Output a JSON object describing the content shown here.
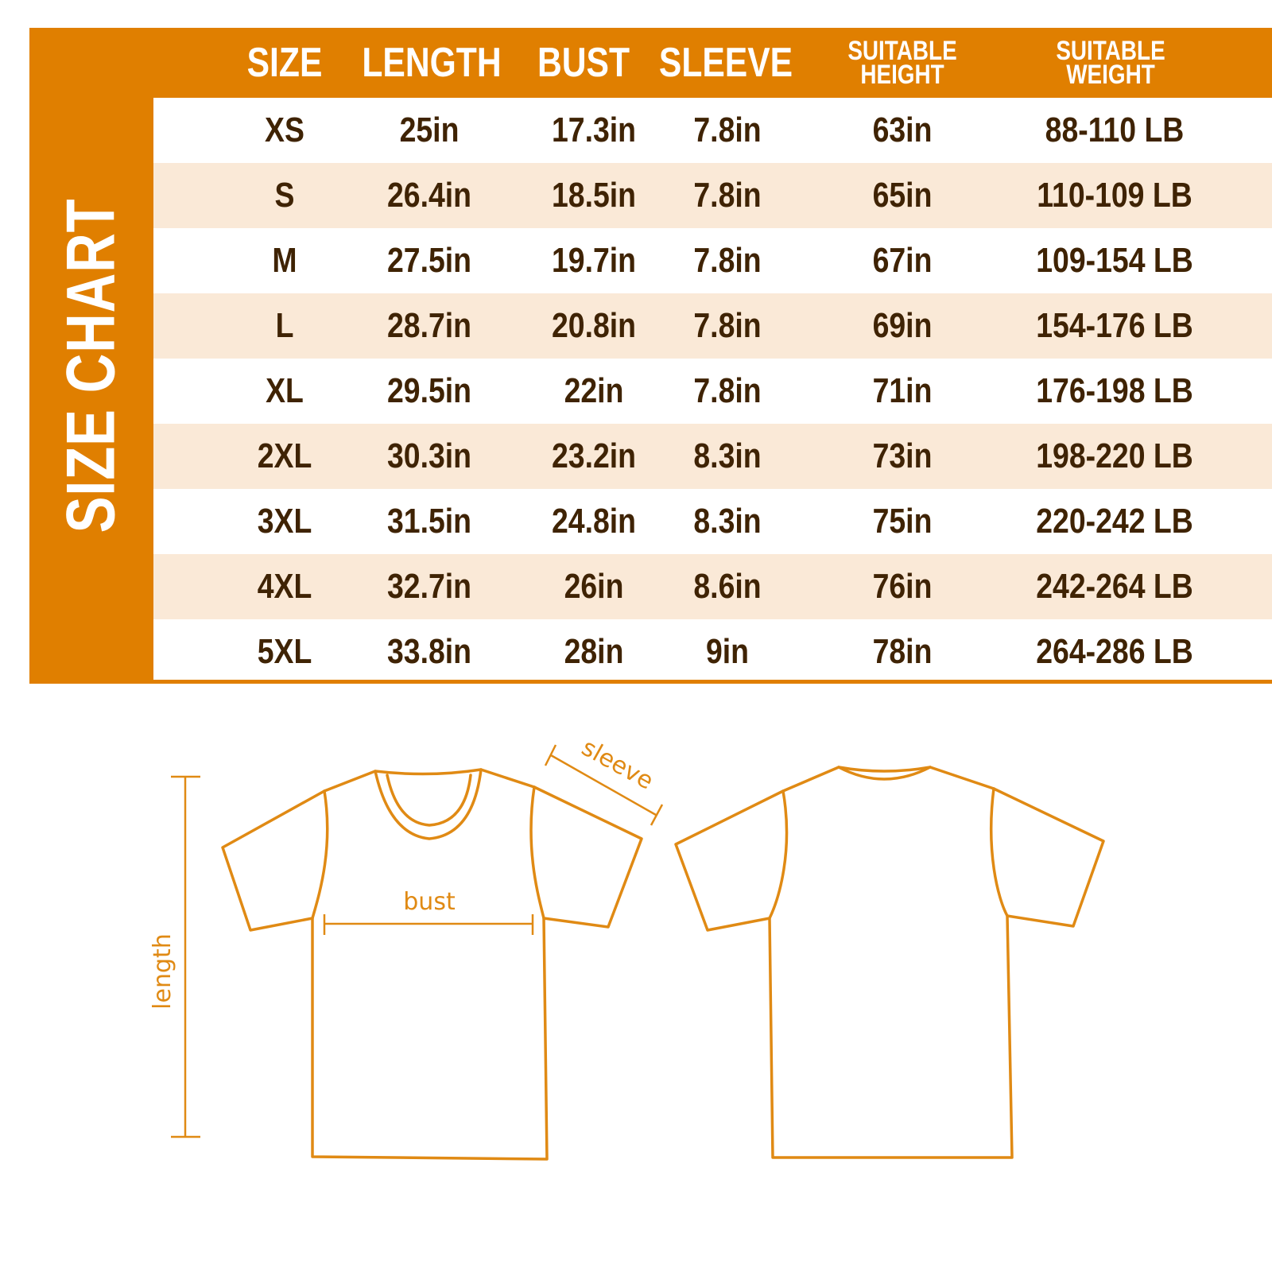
{
  "title": "SIZE CHART",
  "colors": {
    "accent": "#E07F00",
    "text": "#3F2304",
    "stripe": "#FAE9D7",
    "outline": "#E08A14"
  },
  "columns": [
    "SIZE",
    "LENGTH",
    "BUST",
    "SLEEVE",
    [
      "SUITABLE",
      "HEIGHT"
    ],
    [
      "SUITABLE",
      "WEIGHT"
    ]
  ],
  "rows": [
    [
      "XS",
      "25in",
      "17.3in",
      "7.8in",
      "63in",
      "88-110 LB"
    ],
    [
      "S",
      "26.4in",
      "18.5in",
      "7.8in",
      "65in",
      "110-109 LB"
    ],
    [
      "M",
      "27.5in",
      "19.7in",
      "7.8in",
      "67in",
      "109-154 LB"
    ],
    [
      "L",
      "28.7in",
      "20.8in",
      "7.8in",
      "69in",
      "154-176 LB"
    ],
    [
      "XL",
      "29.5in",
      "22in",
      "7.8in",
      "71in",
      "176-198 LB"
    ],
    [
      "2XL",
      "30.3in",
      "23.2in",
      "8.3in",
      "73in",
      "198-220 LB"
    ],
    [
      "3XL",
      "31.5in",
      "24.8in",
      "8.3in",
      "75in",
      "220-242 LB"
    ],
    [
      "4XL",
      "32.7in",
      "26in",
      "8.6in",
      "76in",
      "242-264 LB"
    ],
    [
      "5XL",
      "33.8in",
      "28in",
      "9in",
      "78in",
      "264-286 LB"
    ]
  ],
  "diagram": {
    "length_label": "length",
    "bust_label": "bust",
    "sleeve_label": "sleeve"
  }
}
